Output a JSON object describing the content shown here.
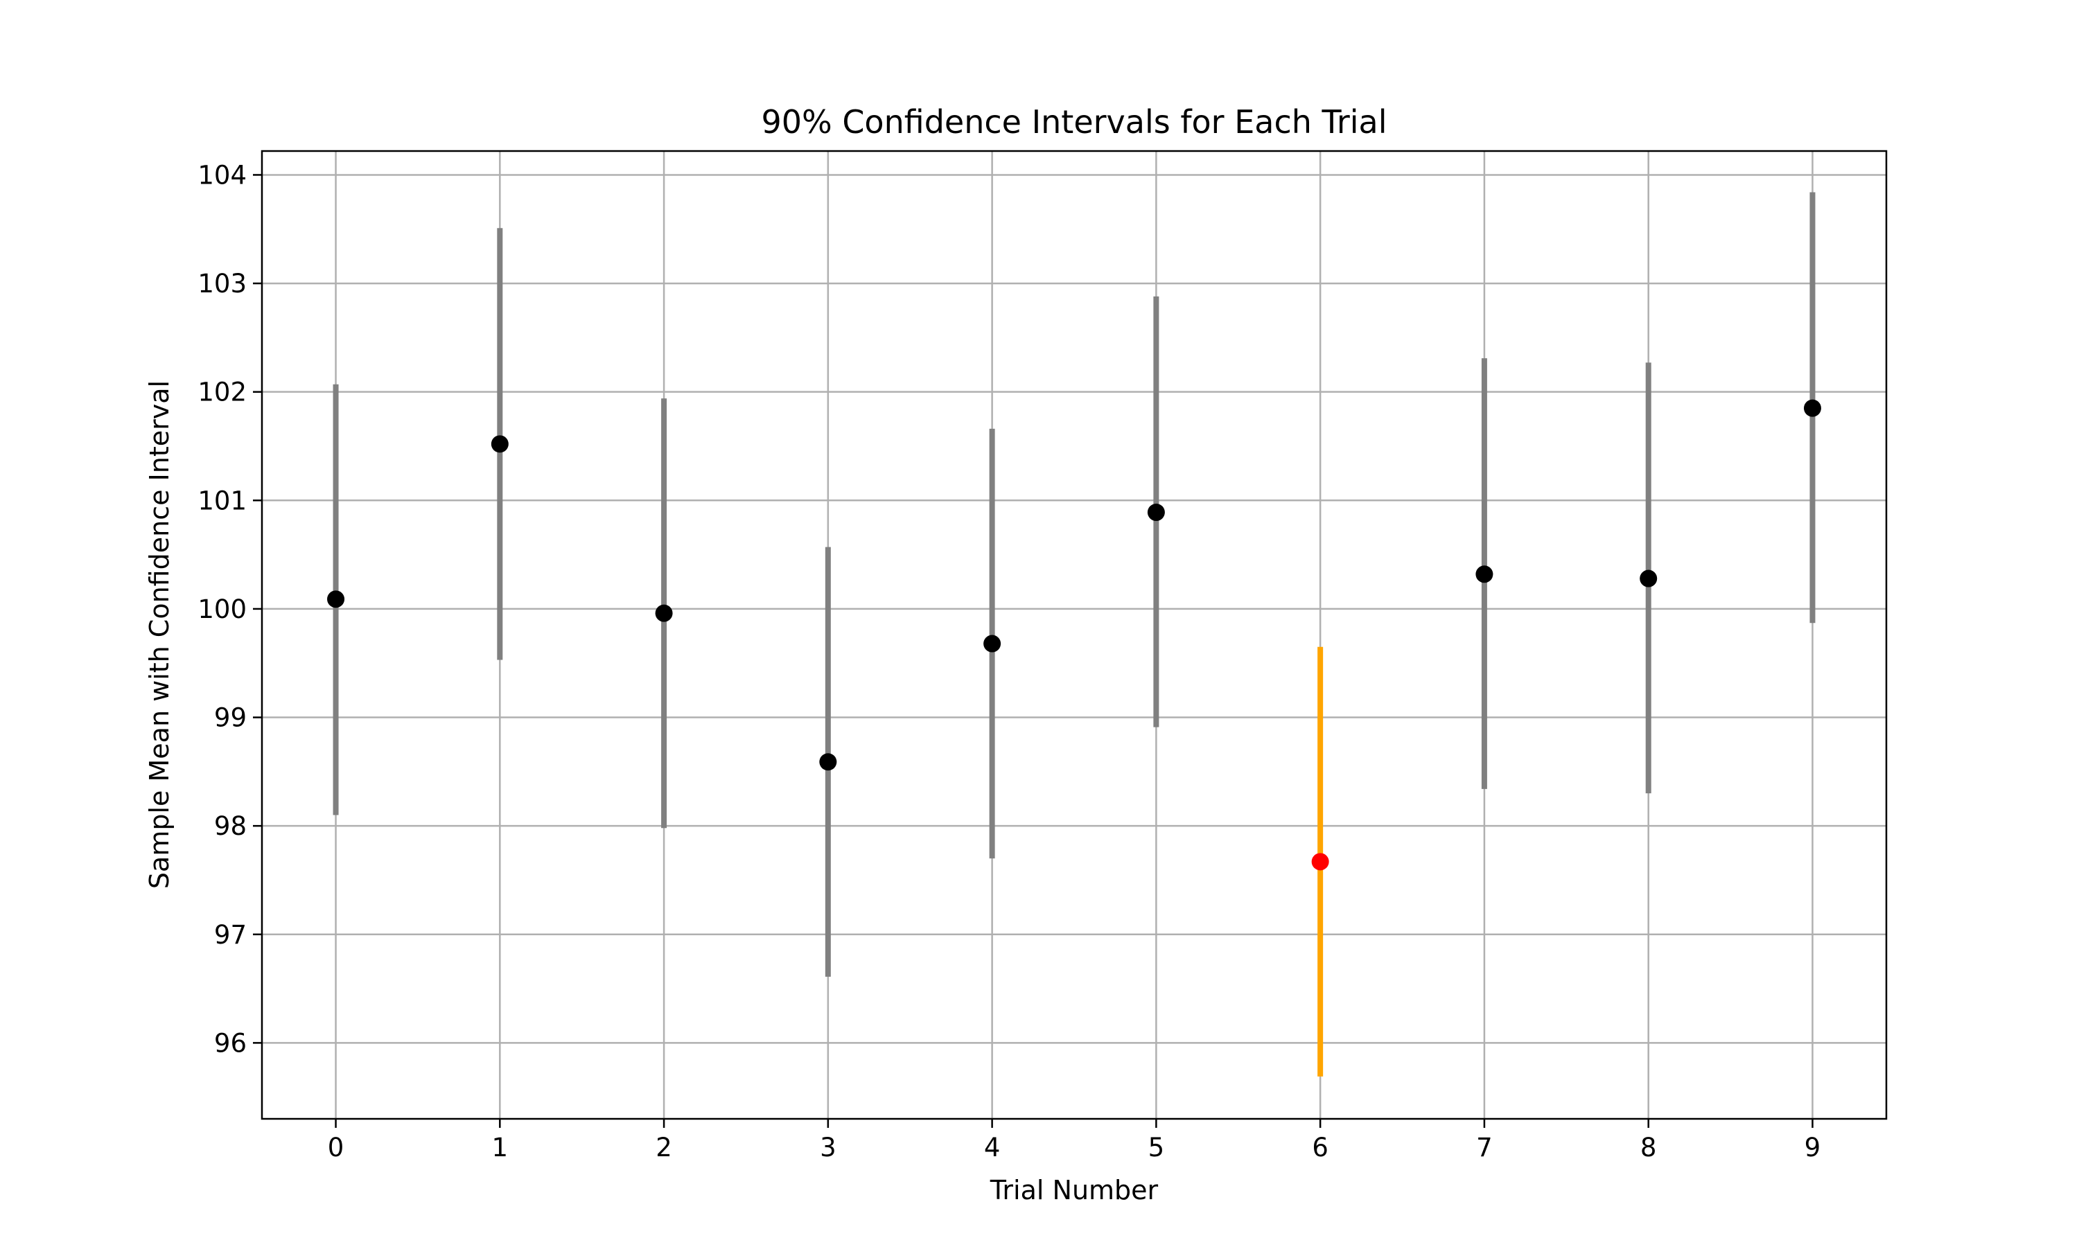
{
  "chart_data": {
    "type": "scatter",
    "title": "90% Confidence Intervals for Each Trial",
    "xlabel": "Trial Number",
    "ylabel": "Sample Mean with Confidence Interval",
    "x": [
      0,
      1,
      2,
      3,
      4,
      5,
      6,
      7,
      8,
      9
    ],
    "means": [
      100.09,
      101.52,
      99.96,
      98.59,
      99.68,
      100.89,
      97.67,
      100.32,
      100.28,
      101.85
    ],
    "lower": [
      98.1,
      99.53,
      97.98,
      96.61,
      97.7,
      98.91,
      95.69,
      98.34,
      98.3,
      99.87
    ],
    "upper": [
      102.07,
      103.51,
      101.94,
      100.57,
      101.66,
      102.88,
      99.65,
      102.31,
      102.27,
      103.84
    ],
    "highlight_index": 6,
    "xticks": [
      0,
      1,
      2,
      3,
      4,
      5,
      6,
      7,
      8,
      9
    ],
    "yticks": [
      96,
      97,
      98,
      99,
      100,
      101,
      102,
      103,
      104
    ],
    "xlim": [
      -0.45,
      9.45
    ],
    "ylim": [
      95.3,
      104.22
    ],
    "grid": true,
    "colors": {
      "interval": "#808080",
      "mean": "#000000",
      "highlight_interval": "#ffa500",
      "highlight_mean": "#ff0000",
      "grid": "#b0b0b0"
    }
  }
}
